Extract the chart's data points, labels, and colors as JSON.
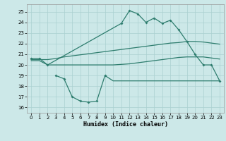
{
  "x": [
    0,
    1,
    2,
    3,
    4,
    5,
    6,
    7,
    8,
    9,
    10,
    11,
    12,
    13,
    14,
    15,
    16,
    17,
    18,
    19,
    20,
    21,
    22,
    23
  ],
  "color": "#2e7d6e",
  "bg_color": "#cce8e8",
  "grid_color": "#aad0d0",
  "xlabel": "Humidex (Indice chaleur)",
  "ylim": [
    15.5,
    25.7
  ],
  "xlim": [
    -0.5,
    23.5
  ],
  "yticks": [
    16,
    17,
    18,
    19,
    20,
    21,
    22,
    23,
    24,
    25
  ],
  "xticks": [
    0,
    1,
    2,
    3,
    4,
    5,
    6,
    7,
    8,
    9,
    10,
    11,
    12,
    13,
    14,
    15,
    16,
    17,
    18,
    19,
    20,
    21,
    22,
    23
  ],
  "line_peak_x": [
    0,
    1,
    2,
    11,
    12,
    13,
    14,
    15,
    16,
    17,
    18,
    19,
    20,
    21,
    22,
    23
  ],
  "line_peak_y": [
    20.6,
    20.6,
    20.0,
    23.9,
    25.1,
    24.8,
    24.0,
    24.4,
    23.9,
    24.2,
    23.3,
    22.2,
    21.0,
    20.0,
    20.0,
    18.5
  ],
  "line_upper_x": [
    0,
    1,
    2,
    3,
    4,
    5,
    6,
    7,
    8,
    9,
    10,
    11,
    12,
    13,
    14,
    15,
    16,
    17,
    18,
    19,
    20,
    21,
    22,
    23
  ],
  "line_upper_y": [
    20.5,
    20.5,
    20.5,
    20.6,
    20.75,
    20.85,
    20.95,
    21.05,
    21.15,
    21.25,
    21.35,
    21.45,
    21.55,
    21.65,
    21.75,
    21.85,
    21.95,
    22.05,
    22.1,
    22.2,
    22.2,
    22.15,
    22.05,
    21.95
  ],
  "line_lower_x": [
    0,
    1,
    2,
    3,
    4,
    5,
    6,
    7,
    8,
    9,
    10,
    11,
    12,
    13,
    14,
    15,
    16,
    17,
    18,
    19,
    20,
    21,
    22,
    23
  ],
  "line_lower_y": [
    20.4,
    20.4,
    20.0,
    20.0,
    20.0,
    20.0,
    20.0,
    20.0,
    20.0,
    20.0,
    20.0,
    20.05,
    20.1,
    20.2,
    20.3,
    20.4,
    20.5,
    20.6,
    20.7,
    20.75,
    20.75,
    20.75,
    20.65,
    20.55
  ],
  "line_dip_x": [
    3,
    4,
    5,
    6,
    7,
    8,
    9
  ],
  "line_dip_y": [
    19.0,
    18.7,
    17.0,
    16.6,
    16.5,
    16.6,
    19.0
  ],
  "line_flat_x": [
    9,
    10,
    11,
    12,
    13,
    14,
    15,
    16,
    17,
    18,
    19,
    20,
    21,
    22,
    23
  ],
  "line_flat_y": [
    19.0,
    18.5,
    18.5,
    18.5,
    18.5,
    18.5,
    18.5,
    18.5,
    18.5,
    18.5,
    18.5,
    18.5,
    18.5,
    18.5,
    18.5
  ]
}
